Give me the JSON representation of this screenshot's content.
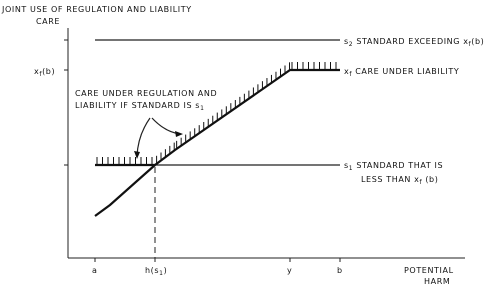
{
  "title": "JOINT USE OF REGULATION AND LIABILITY",
  "y_axis": {
    "label": "CARE",
    "tick": [
      "x",
      "f",
      "(b)"
    ]
  },
  "x_axis": {
    "label": [
      "POTENTIAL",
      "HARM"
    ],
    "ticks": [
      [
        "a"
      ],
      [
        "h(s",
        "1",
        ")"
      ],
      [
        "y"
      ],
      [
        "b"
      ]
    ]
  },
  "lines": {
    "s2": [
      "s",
      "2",
      "  STANDARD EXCEEDING  x",
      "f",
      "(b)"
    ],
    "xf": [
      "x",
      "f",
      "  CARE UNDER LIABILITY"
    ],
    "s1": [
      [
        "s",
        "1",
        "  STANDARD THAT IS"
      ],
      [
        "LESS THAN  x",
        "f",
        " (b)"
      ]
    ]
  },
  "annotation": [
    [
      "CARE UNDER REGULATION AND"
    ],
    [
      "LIABILITY IF STANDARD IS s",
      "1"
    ]
  ]
}
